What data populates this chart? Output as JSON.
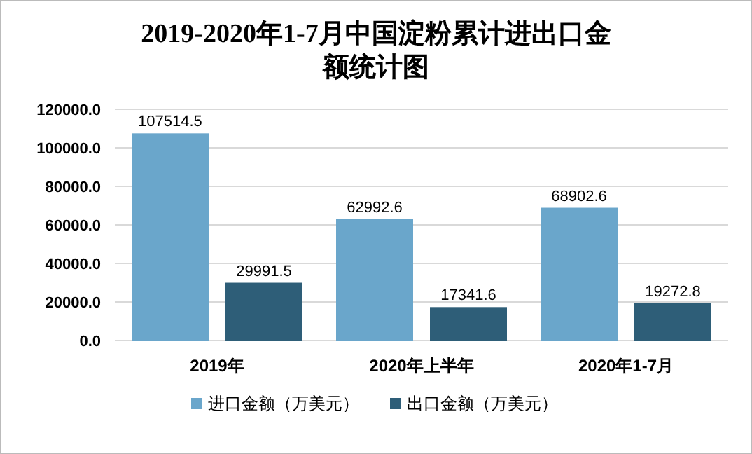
{
  "chart_data": {
    "type": "bar",
    "title": "2019-2020年1-7月中国淀粉累计进出口金额统计图",
    "categories": [
      "2019年",
      "2020年上半年",
      "2020年1-7月"
    ],
    "series": [
      {
        "name": "进口金额（万美元）",
        "color": "#6aa6cb",
        "values": [
          107514.5,
          62992.6,
          68902.6
        ]
      },
      {
        "name": "出口金额（万美元）",
        "color": "#2e5e78",
        "values": [
          29991.5,
          17341.6,
          19272.8
        ]
      }
    ],
    "ylim": [
      0,
      120000
    ],
    "yticks": [
      {
        "value": 0,
        "label": "0.0"
      },
      {
        "value": 20000,
        "label": "20000.0"
      },
      {
        "value": 40000,
        "label": "40000.0"
      },
      {
        "value": 60000,
        "label": "60000.0"
      },
      {
        "value": 80000,
        "label": "80000.0"
      },
      {
        "value": 100000,
        "label": "100000.0"
      },
      {
        "value": 120000,
        "label": "120000.0"
      }
    ],
    "grid": "y",
    "data_labels": true,
    "legend": "bottom"
  }
}
